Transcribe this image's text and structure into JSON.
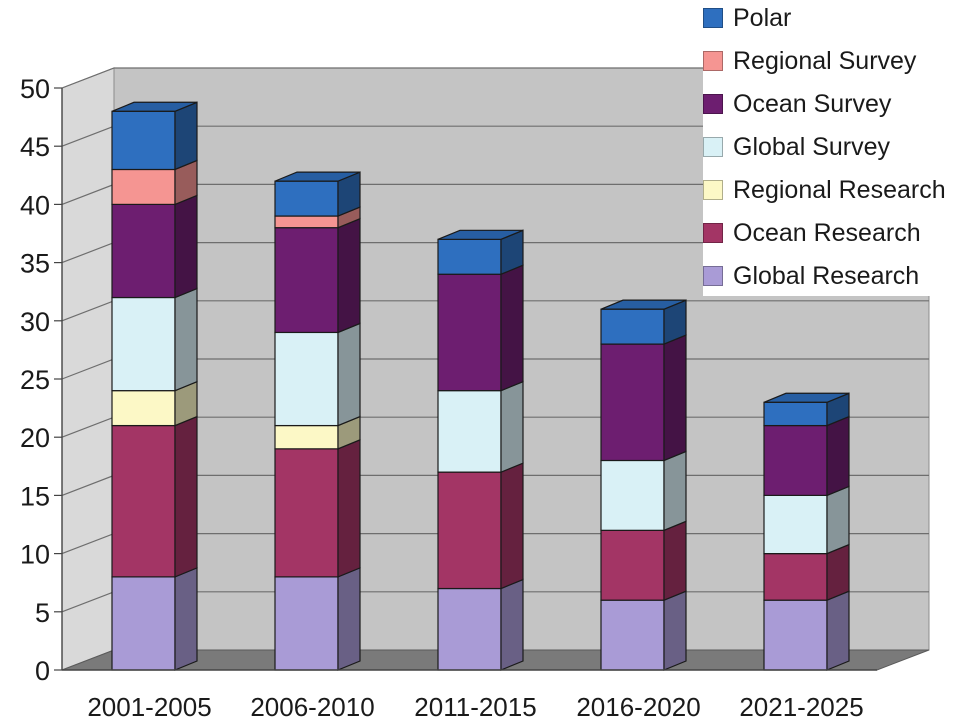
{
  "chart_data": {
    "type": "bar",
    "stacked": true,
    "three_d": true,
    "categories": [
      "2001-2005",
      "2006-2010",
      "2011-2015",
      "2016-2020",
      "2021-2025"
    ],
    "series": [
      {
        "name": "Global Research",
        "color": "#a99bd6",
        "values": [
          8,
          8,
          7,
          6,
          6
        ]
      },
      {
        "name": "Ocean Research",
        "color": "#a33565",
        "values": [
          13,
          11,
          10,
          6,
          4
        ]
      },
      {
        "name": "Regional Research",
        "color": "#fcf8c6",
        "values": [
          3,
          2,
          0,
          0,
          0
        ]
      },
      {
        "name": "Global Survey",
        "color": "#d9f1f6",
        "values": [
          8,
          8,
          7,
          6,
          5
        ]
      },
      {
        "name": "Ocean Survey",
        "color": "#6d1e70",
        "values": [
          8,
          9,
          10,
          10,
          6
        ]
      },
      {
        "name": "Regional Survey",
        "color": "#f59592",
        "values": [
          3,
          1,
          0,
          0,
          0
        ]
      },
      {
        "name": "Polar",
        "color": "#2e6fbf",
        "values": [
          5,
          3,
          3,
          3,
          2
        ]
      }
    ],
    "yticks": [
      "0",
      "5",
      "10",
      "15",
      "20",
      "25",
      "30",
      "35",
      "40",
      "45",
      "50"
    ],
    "ylim": [
      0,
      50
    ],
    "grid": true,
    "legend_position": "top-right",
    "legend_order": [
      "Polar",
      "Regional Survey",
      "Ocean Survey",
      "Global Survey",
      "Regional Research",
      "Ocean Research",
      "Global Research"
    ],
    "title": "",
    "xlabel": "",
    "ylabel": ""
  }
}
